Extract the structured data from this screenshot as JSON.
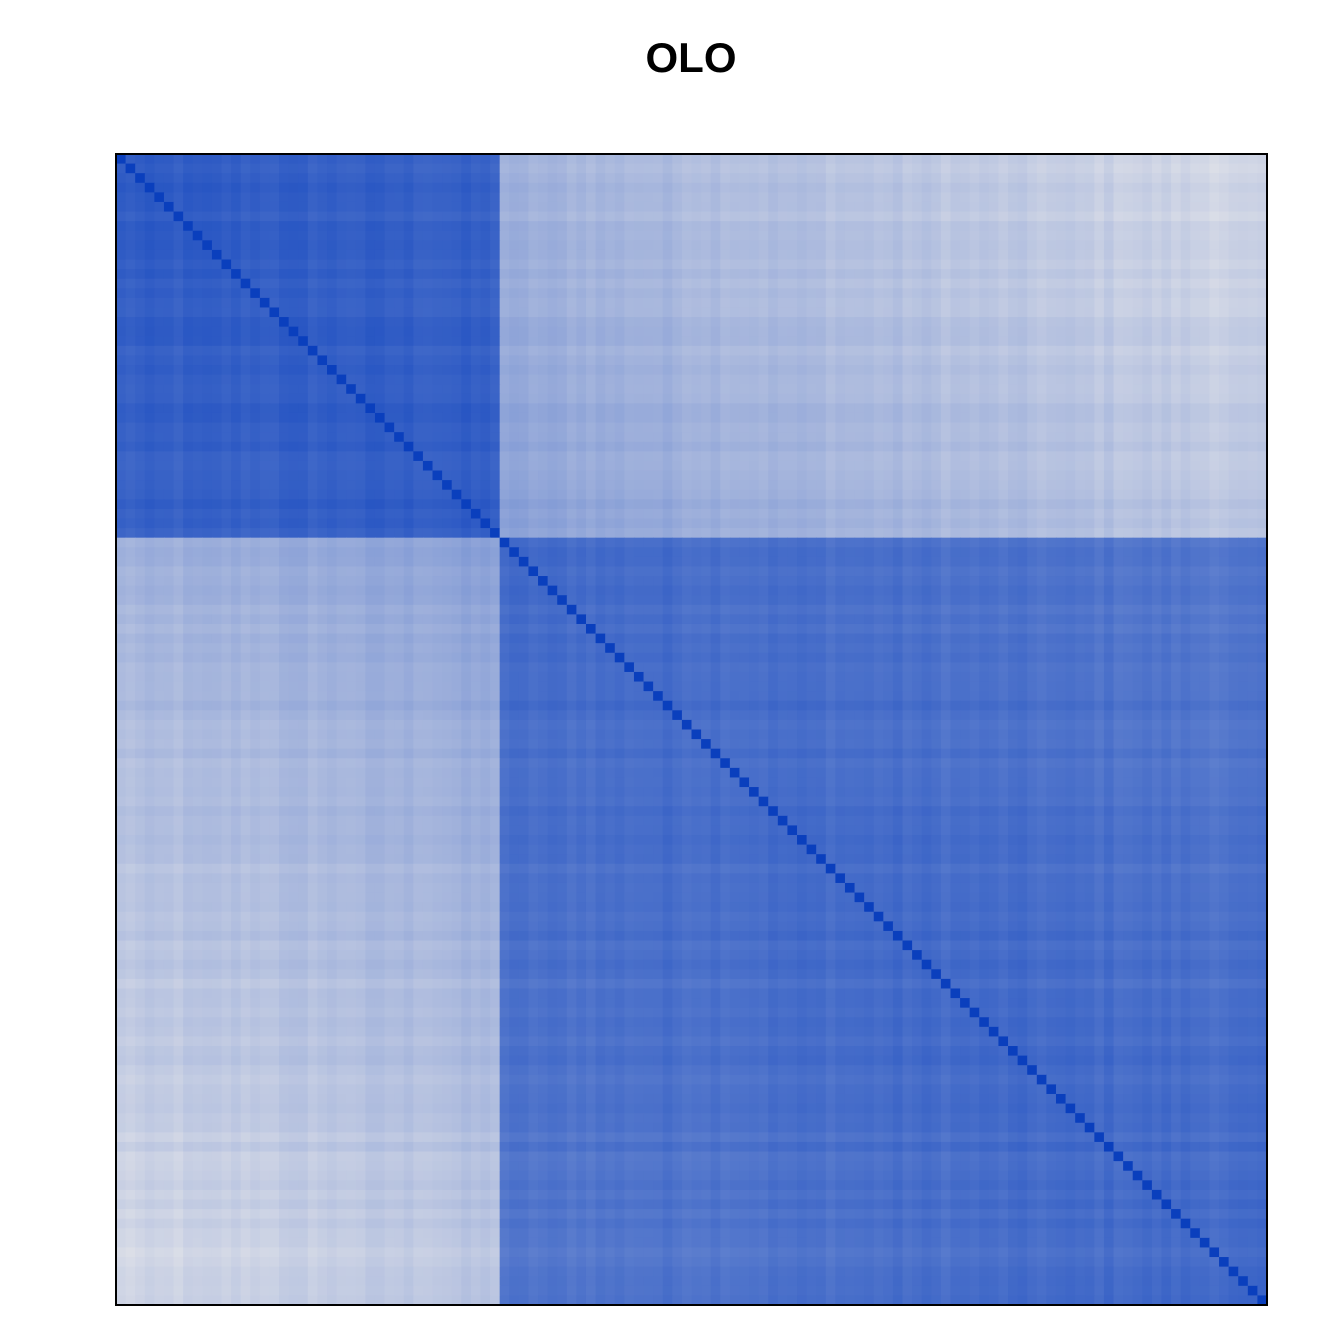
{
  "chart_data": {
    "type": "heatmap",
    "title": "OLO",
    "xlabel": "",
    "ylabel": "",
    "grid": false,
    "legend": "none",
    "n": 120,
    "block_boundaries": [
      40
    ],
    "palette": {
      "low": "#e8e8ea",
      "high": "#0a3fbd",
      "border": "#000000"
    },
    "value_range": [
      0,
      1
    ],
    "diagonal_value": 1.0,
    "block_similarity": {
      "within_block_1": 0.82,
      "within_block_2": 0.74,
      "between_blocks": 0.42
    }
  }
}
